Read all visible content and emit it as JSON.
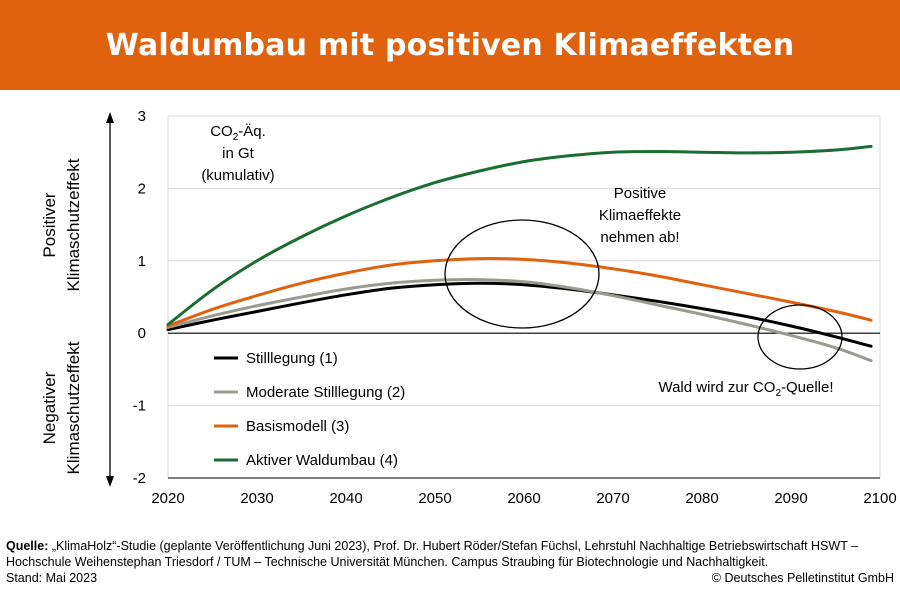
{
  "banner": {
    "title": "Waldumbau mit positiven Klimaeffekten"
  },
  "colors": {
    "banner": "#e0620f",
    "stilllegung": "#000000",
    "moderate": "#9a9a90",
    "basismodell": "#e0620f",
    "waldumbau": "#1a6e32"
  },
  "chart_data": {
    "type": "line",
    "xlim": [
      2020,
      2100
    ],
    "ylim": [
      -2,
      3
    ],
    "x_ticks": [
      "2020",
      "2030",
      "2040",
      "2050",
      "2060",
      "2070",
      "2080",
      "2090",
      "2100"
    ],
    "y_ticks": [
      "-2",
      "-1",
      "0",
      "1",
      "2",
      "3"
    ],
    "grid": true,
    "unit_label": {
      "line1_prefix": "CO",
      "line1_sub": "2",
      "line1_suffix": "-Äq.",
      "line2": "in Gt",
      "line3": "(kumulativ)"
    },
    "ylabel_positive": [
      "Positiver",
      "Klimaschutzeffekt"
    ],
    "ylabel_negative": [
      "Negativer",
      "Klimaschutzeffekt"
    ],
    "legend_position": "bottom-left",
    "x": [
      2020,
      2025,
      2030,
      2035,
      2040,
      2045,
      2050,
      2055,
      2060,
      2065,
      2070,
      2075,
      2080,
      2085,
      2090,
      2095,
      2099
    ],
    "series": [
      {
        "name": "Stilllegung (1)",
        "color": "#000000",
        "values": [
          0.05,
          0.18,
          0.3,
          0.42,
          0.53,
          0.62,
          0.67,
          0.69,
          0.67,
          0.61,
          0.53,
          0.44,
          0.34,
          0.23,
          0.1,
          -0.05,
          -0.18
        ]
      },
      {
        "name": "Moderate Stilllegung (2)",
        "color": "#9a9a90",
        "values": [
          0.08,
          0.24,
          0.38,
          0.5,
          0.61,
          0.69,
          0.73,
          0.74,
          0.71,
          0.63,
          0.52,
          0.39,
          0.26,
          0.12,
          -0.03,
          -0.2,
          -0.38
        ]
      },
      {
        "name": "Basismodell (3)",
        "color": "#e0620f",
        "values": [
          0.1,
          0.33,
          0.52,
          0.69,
          0.83,
          0.94,
          1.0,
          1.03,
          1.02,
          0.97,
          0.89,
          0.79,
          0.67,
          0.55,
          0.43,
          0.3,
          0.18
        ]
      },
      {
        "name": "Aktiver Waldumbau (4)",
        "color": "#1a6e32",
        "values": [
          0.12,
          0.6,
          1.0,
          1.33,
          1.62,
          1.87,
          2.08,
          2.24,
          2.37,
          2.45,
          2.5,
          2.51,
          2.5,
          2.49,
          2.5,
          2.53,
          2.58
        ]
      }
    ],
    "annotations": {
      "positive": [
        "Positive",
        "Klimaeffekte",
        "nehmen ab!"
      ],
      "source_prefix": "Wald wird zur CO",
      "source_sub": "2",
      "source_suffix": "-Quelle!"
    }
  },
  "footer": {
    "source_label": "Quelle:",
    "source_text": " „KlimaHolz“-Studie (geplante Veröffentlichung Juni 2023), Prof. Dr. Hubert Röder/Stefan Füchsl, Lehrstuhl Nachhaltige Betriebswirtschaft HSWT – Hochschule Weihenstephan Triesdorf / TUM – Technische Universität München. Campus Straubing für Biotechnologie und Nachhaltigkeit.",
    "stand": "Stand: Mai 2023",
    "copyright": "© Deutsches Pelletinstitut GmbH"
  }
}
